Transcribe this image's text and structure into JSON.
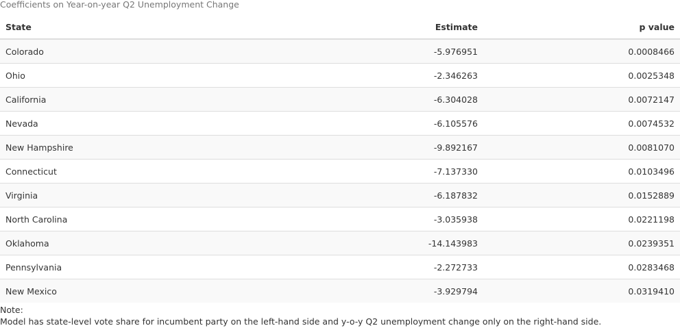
{
  "caption": "Coefficients on Year-on-year Q2 Unemployment Change",
  "table": {
    "headers": {
      "state": "State",
      "estimate": "Estimate",
      "pvalue": "p value"
    },
    "rows": [
      {
        "state": "Colorado",
        "estimate": "-5.976951",
        "pvalue": "0.0008466"
      },
      {
        "state": "Ohio",
        "estimate": "-2.346263",
        "pvalue": "0.0025348"
      },
      {
        "state": "California",
        "estimate": "-6.304028",
        "pvalue": "0.0072147"
      },
      {
        "state": "Nevada",
        "estimate": "-6.105576",
        "pvalue": "0.0074532"
      },
      {
        "state": "New Hampshire",
        "estimate": "-9.892167",
        "pvalue": "0.0081070"
      },
      {
        "state": "Connecticut",
        "estimate": "-7.137330",
        "pvalue": "0.0103496"
      },
      {
        "state": "Virginia",
        "estimate": "-6.187832",
        "pvalue": "0.0152889"
      },
      {
        "state": "North Carolina",
        "estimate": "-3.035938",
        "pvalue": "0.0221198"
      },
      {
        "state": "Oklahoma",
        "estimate": "-14.143983",
        "pvalue": "0.0239351"
      },
      {
        "state": "Pennsylvania",
        "estimate": "-2.272733",
        "pvalue": "0.0283468"
      },
      {
        "state": "New Mexico",
        "estimate": "-3.929794",
        "pvalue": "0.0319410"
      }
    ]
  },
  "notes": {
    "label": "Note:",
    "text": "Model has state-level vote share for incumbent party on the left-hand side and y-o-y Q2 unemployment change only on the right-hand side."
  }
}
